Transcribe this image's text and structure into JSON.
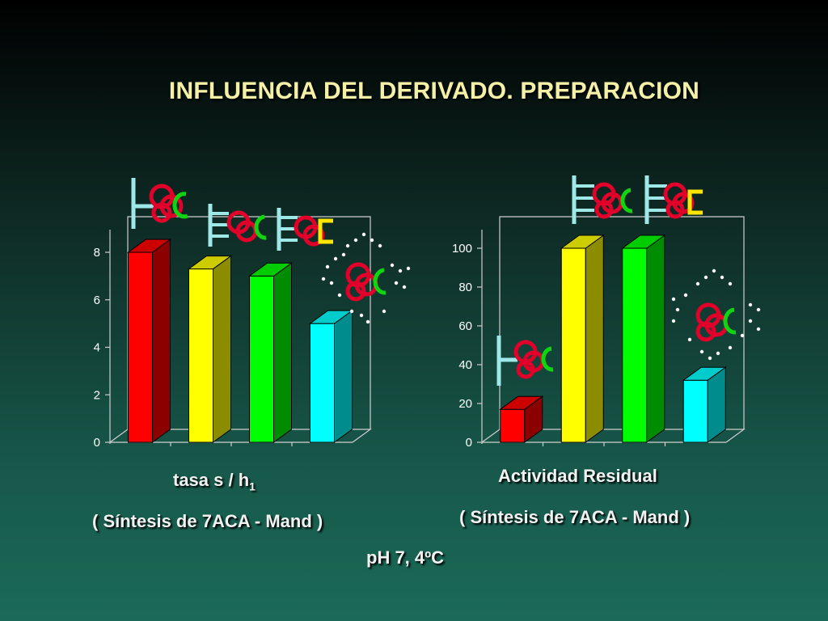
{
  "title": "INFLUENCIA DEL DERIVADO. PREPARACION",
  "chart_data": [
    {
      "type": "bar",
      "categories": [
        "",
        "",
        "",
        ""
      ],
      "values": [
        8,
        7.3,
        7,
        5
      ],
      "colors": [
        "#ff0000",
        "#ffff00",
        "#00ff00",
        "#00ffff"
      ],
      "ylim": [
        0,
        8
      ],
      "yticks": [
        0,
        2,
        4,
        6,
        8
      ]
    },
    {
      "type": "bar",
      "categories": [
        "",
        "",
        "",
        ""
      ],
      "values": [
        17,
        100,
        100,
        32
      ],
      "colors": [
        "#ff0000",
        "#ffff00",
        "#00ff00",
        "#00ffff"
      ],
      "ylim": [
        0,
        100
      ],
      "yticks": [
        0,
        20,
        40,
        60,
        80,
        100
      ]
    }
  ],
  "captions": {
    "left_main": "tasa  s / h",
    "left_sub": "1",
    "left_synthesis": "( Síntesis de 7ACA - Mand )",
    "right_main": "Actividad Residual",
    "right_synthesis": "( Síntesis de 7ACA - Mand )",
    "conditions": "pH 7, 4ºC"
  }
}
